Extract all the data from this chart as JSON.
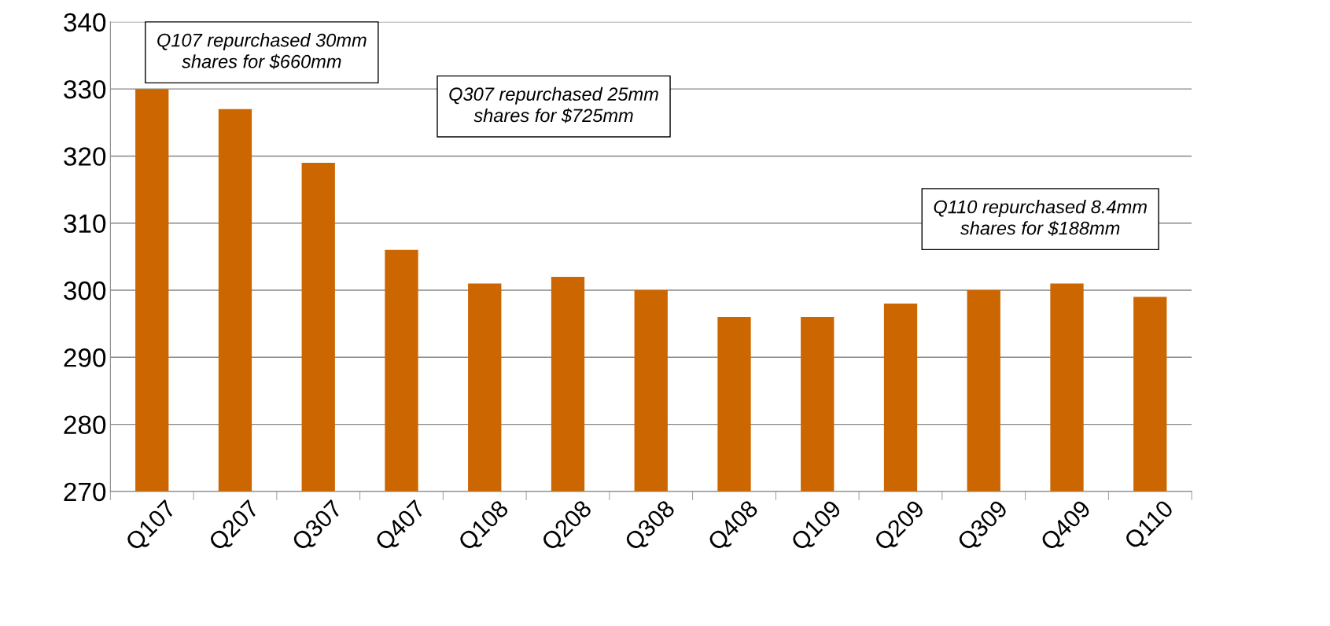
{
  "chart_data": {
    "type": "bar",
    "categories": [
      "Q107",
      "Q207",
      "Q307",
      "Q407",
      "Q108",
      "Q208",
      "Q308",
      "Q408",
      "Q109",
      "Q209",
      "Q309",
      "Q409",
      "Q110"
    ],
    "values": [
      330,
      327,
      319,
      306,
      301,
      302,
      300,
      296,
      296,
      298,
      300,
      301,
      299
    ],
    "color": "#cc6600",
    "ylim": [
      270,
      340
    ],
    "yticks": [
      270,
      280,
      290,
      300,
      310,
      320,
      330,
      340
    ],
    "grid": "y",
    "annotations": [
      "Q107 repurchased 30mm\nshares for $660mm",
      "Q307 repurchased 25mm\nshares for $725mm",
      "Q110 repurchased 8.4mm\nshares for $188mm"
    ]
  }
}
